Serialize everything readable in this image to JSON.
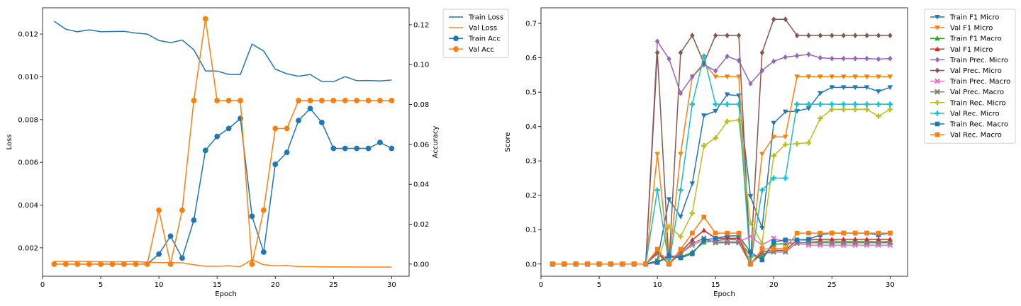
{
  "chart_data": [
    {
      "type": "line",
      "xlabel": "Epoch",
      "ylabel": "Loss",
      "y2label": "Accuracy",
      "xlim": [
        0,
        31.5
      ],
      "ylim": [
        0.00067,
        0.01323
      ],
      "y2lim": [
        -0.0061,
        0.1285
      ],
      "xticks": [
        0,
        5,
        10,
        15,
        20,
        25,
        30
      ],
      "yticks": [
        0.002,
        0.004,
        0.006,
        0.008,
        0.01,
        0.012
      ],
      "ytick_labels": [
        "0.002",
        "0.004",
        "0.006",
        "0.008",
        "0.010",
        "0.012"
      ],
      "y2ticks": [
        0.0,
        0.02,
        0.04,
        0.06,
        0.08,
        0.1,
        0.12
      ],
      "y2tick_labels": [
        "0.00",
        "0.02",
        "0.04",
        "0.06",
        "0.08",
        "0.10",
        "0.12"
      ],
      "grid": false,
      "legend_placement": "outside-right",
      "x": [
        1,
        2,
        3,
        4,
        5,
        6,
        7,
        8,
        9,
        10,
        11,
        12,
        13,
        14,
        15,
        16,
        17,
        18,
        19,
        20,
        21,
        22,
        23,
        24,
        25,
        26,
        27,
        28,
        29,
        30
      ],
      "series": [
        {
          "name": "Train Loss",
          "axis": "left",
          "color": "#1f77b4",
          "marker": "none",
          "values": [
            0.0126,
            0.01223,
            0.01211,
            0.0122,
            0.01211,
            0.01212,
            0.01213,
            0.01205,
            0.012,
            0.0117,
            0.0116,
            0.01172,
            0.01127,
            0.01028,
            0.01027,
            0.01011,
            0.01011,
            0.01153,
            0.01121,
            0.01036,
            0.01014,
            0.01003,
            0.01011,
            0.00978,
            0.00977,
            0.01001,
            0.00982,
            0.00983,
            0.00981,
            0.00985
          ]
        },
        {
          "name": "Val Loss",
          "axis": "left",
          "color": "#ff7f0e",
          "marker": "none",
          "values": [
            0.00137,
            0.00136,
            0.00136,
            0.00136,
            0.00135,
            0.00135,
            0.00135,
            0.00136,
            0.00132,
            0.00131,
            0.00131,
            0.0013,
            0.00121,
            0.00114,
            0.00114,
            0.00116,
            0.00112,
            0.00145,
            0.00121,
            0.00116,
            0.00117,
            0.00112,
            0.00112,
            0.00111,
            0.00111,
            0.00111,
            0.0011,
            0.0011,
            0.0011,
            0.0011
          ]
        },
        {
          "name": "Train Acc",
          "axis": "right",
          "color": "#1f77b4",
          "marker": "circle",
          "values": [
            0.0,
            0.0,
            0.0,
            0.0,
            0.0,
            0.0,
            0.0,
            0.0,
            0.0,
            0.005,
            0.014,
            0.003,
            0.022,
            0.057,
            0.064,
            0.068,
            0.073,
            0.024,
            0.006,
            0.05,
            0.056,
            0.072,
            0.078,
            0.071,
            0.058,
            0.058,
            0.058,
            0.058,
            0.061,
            0.058
          ]
        },
        {
          "name": "Val Acc",
          "axis": "right",
          "color": "#ff7f0e",
          "marker": "circle",
          "values": [
            0.0,
            0.0,
            0.0,
            0.0,
            0.0,
            0.0,
            0.0,
            0.0,
            0.0,
            0.027,
            0.0,
            0.027,
            0.082,
            0.123,
            0.082,
            0.082,
            0.082,
            0.0,
            0.027,
            0.068,
            0.068,
            0.082,
            0.082,
            0.082,
            0.082,
            0.082,
            0.082,
            0.082,
            0.082,
            0.082
          ]
        }
      ]
    },
    {
      "type": "line",
      "xlabel": "Epoch",
      "ylabel": "Score",
      "xlim": [
        0,
        31.5
      ],
      "ylim": [
        -0.0355,
        0.7455
      ],
      "xticks": [
        0,
        5,
        10,
        15,
        20,
        25,
        30
      ],
      "yticks": [
        0.0,
        0.1,
        0.2,
        0.3,
        0.4,
        0.5,
        0.6,
        0.7
      ],
      "ytick_labels": [
        "0.0",
        "0.1",
        "0.2",
        "0.3",
        "0.4",
        "0.5",
        "0.6",
        "0.7"
      ],
      "grid": false,
      "legend_placement": "outside-right",
      "x": [
        1,
        2,
        3,
        4,
        5,
        6,
        7,
        8,
        9,
        10,
        11,
        12,
        13,
        14,
        15,
        16,
        17,
        18,
        19,
        20,
        21,
        22,
        23,
        24,
        25,
        26,
        27,
        28,
        29,
        30
      ],
      "series": [
        {
          "name": "Train F1 Micro",
          "color": "#1f77b4",
          "marker": "tri-down",
          "values": [
            0,
            0,
            0,
            0,
            0,
            0,
            0,
            0,
            0,
            0.01,
            0.188,
            0.138,
            0.234,
            0.432,
            0.445,
            0.493,
            0.49,
            0.197,
            0.105,
            0.41,
            0.443,
            0.445,
            0.453,
            0.497,
            0.514,
            0.514,
            0.514,
            0.514,
            0.502,
            0.514
          ]
        },
        {
          "name": "Val F1 Micro",
          "color": "#ff7f0e",
          "marker": "tri-down",
          "values": [
            0,
            0,
            0,
            0,
            0,
            0,
            0,
            0,
            0,
            0.32,
            0,
            0.32,
            0.545,
            0.585,
            0.545,
            0.545,
            0.545,
            0,
            0.32,
            0.37,
            0.37,
            0.545,
            0.545,
            0.545,
            0.545,
            0.545,
            0.545,
            0.545,
            0.545,
            0.545
          ]
        },
        {
          "name": "Train F1 Macro",
          "color": "#2ca02c",
          "marker": "tri-up",
          "values": [
            0,
            0,
            0,
            0,
            0,
            0,
            0,
            0,
            0,
            0.005,
            0.02,
            0.02,
            0.035,
            0.063,
            0.068,
            0.072,
            0.07,
            0.025,
            0.02,
            0.057,
            0.06,
            0.062,
            0.063,
            0.066,
            0.067,
            0.066,
            0.066,
            0.066,
            0.064,
            0.066
          ]
        },
        {
          "name": "Val F1 Micro",
          "color": "#d62728",
          "marker": "tri-up",
          "values": [
            0,
            0,
            0,
            0,
            0,
            0,
            0,
            0,
            0,
            0.035,
            0,
            0.035,
            0.07,
            0.098,
            0.075,
            0.075,
            0.075,
            0,
            0.035,
            0.04,
            0.04,
            0.07,
            0.07,
            0.072,
            0.072,
            0.072,
            0.072,
            0.072,
            0.072,
            0.072
          ]
        },
        {
          "name": "Train Prec. Micro",
          "color": "#9467bd",
          "marker": "diamond",
          "values": [
            0,
            0,
            0,
            0,
            0,
            0,
            0,
            0,
            0,
            0.648,
            0.597,
            0.497,
            0.545,
            0.58,
            0.562,
            0.604,
            0.592,
            0.525,
            0.563,
            0.59,
            0.602,
            0.606,
            0.61,
            0.6,
            0.598,
            0.598,
            0.598,
            0.598,
            0.596,
            0.598
          ]
        },
        {
          "name": "Val Prec. Micro",
          "color": "#8c564b",
          "marker": "diamond",
          "values": [
            0,
            0,
            0,
            0,
            0,
            0,
            0,
            0,
            0,
            0.615,
            0,
            0.615,
            0.665,
            0.585,
            0.665,
            0.665,
            0.665,
            0,
            0.615,
            0.712,
            0.712,
            0.665,
            0.665,
            0.665,
            0.665,
            0.665,
            0.665,
            0.665,
            0.665,
            0.665
          ]
        },
        {
          "name": "Train Prec. Macro",
          "color": "#e377c2",
          "marker": "x",
          "values": [
            0,
            0,
            0,
            0,
            0,
            0,
            0,
            0,
            0,
            0.03,
            0.018,
            0.03,
            0.055,
            0.07,
            0.065,
            0.065,
            0.065,
            0.08,
            0.055,
            0.075,
            0.065,
            0.06,
            0.055,
            0.055,
            0.055,
            0.055,
            0.055,
            0.055,
            0.055,
            0.055
          ]
        },
        {
          "name": "Val Prec. Macro",
          "color": "#7f7f7f",
          "marker": "x",
          "values": [
            0,
            0,
            0,
            0,
            0,
            0,
            0,
            0,
            0,
            0.03,
            0,
            0.03,
            0.06,
            0.075,
            0.062,
            0.062,
            0.062,
            0,
            0.03,
            0.035,
            0.035,
            0.062,
            0.062,
            0.062,
            0.062,
            0.062,
            0.062,
            0.062,
            0.062,
            0.062
          ]
        },
        {
          "name": "Train Rec. Micro",
          "color": "#bcbd22",
          "marker": "plus",
          "values": [
            0,
            0,
            0,
            0,
            0,
            0,
            0,
            0,
            0,
            0.005,
            0.11,
            0.08,
            0.148,
            0.344,
            0.367,
            0.415,
            0.419,
            0.12,
            0.06,
            0.315,
            0.348,
            0.35,
            0.353,
            0.424,
            0.45,
            0.45,
            0.45,
            0.45,
            0.43,
            0.45
          ]
        },
        {
          "name": "Val Rec. Micro",
          "color": "#17becf",
          "marker": "plus",
          "values": [
            0,
            0,
            0,
            0,
            0,
            0,
            0,
            0,
            0,
            0.215,
            0,
            0.215,
            0.465,
            0.605,
            0.465,
            0.465,
            0.465,
            0,
            0.215,
            0.25,
            0.25,
            0.465,
            0.465,
            0.465,
            0.465,
            0.465,
            0.465,
            0.465,
            0.465,
            0.465
          ]
        },
        {
          "name": "Train Rec. Macro",
          "color": "#1f77b4",
          "marker": "square",
          "values": [
            0,
            0,
            0,
            0,
            0,
            0,
            0,
            0,
            0,
            0.005,
            0.025,
            0.018,
            0.03,
            0.07,
            0.075,
            0.082,
            0.082,
            0.035,
            0.012,
            0.065,
            0.07,
            0.07,
            0.072,
            0.085,
            0.09,
            0.09,
            0.09,
            0.09,
            0.085,
            0.09
          ]
        },
        {
          "name": "Val Rec. Macro",
          "color": "#ff7f0e",
          "marker": "square",
          "values": [
            0,
            0,
            0,
            0,
            0,
            0,
            0,
            0,
            0,
            0.043,
            0,
            0.043,
            0.09,
            0.137,
            0.09,
            0.09,
            0.09,
            0,
            0.043,
            0.045,
            0.045,
            0.09,
            0.09,
            0.09,
            0.09,
            0.09,
            0.09,
            0.09,
            0.09,
            0.09
          ]
        }
      ]
    }
  ]
}
